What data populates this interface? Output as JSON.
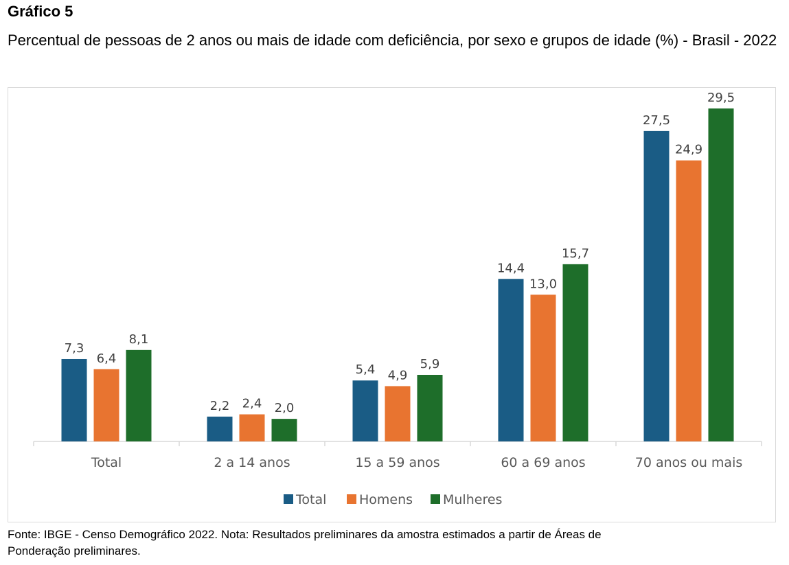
{
  "header": {
    "label": "Gráfico 5",
    "title": "Percentual de pessoas de 2 anos ou mais de idade com deficiência, por sexo e grupos de idade (%) - Brasil - 2022"
  },
  "footnote": {
    "line1": "Fonte: IBGE - Censo Demográfico 2022. Nota: Resultados preliminares da amostra estimados a partir de Áreas de",
    "line2": "Ponderação preliminares."
  },
  "colors": {
    "total": "#1a5c85",
    "homens": "#e87430",
    "mulheres": "#1e6e2a",
    "axis": "#d9d9d9"
  },
  "chart_data": {
    "type": "bar",
    "categories": [
      "Total",
      "2 a 14 anos",
      "15 a 59 anos",
      "60 a 69 anos",
      "70 anos ou mais"
    ],
    "series": [
      {
        "name": "Total",
        "values": [
          7.3,
          2.2,
          5.4,
          14.4,
          27.5
        ],
        "labels": [
          "7,3",
          "2,2",
          "5,4",
          "14,4",
          "27,5"
        ],
        "color": "#1a5c85"
      },
      {
        "name": "Homens",
        "values": [
          6.4,
          2.4,
          4.9,
          13.0,
          24.9
        ],
        "labels": [
          "6,4",
          "2,4",
          "4,9",
          "13,0",
          "24,9"
        ],
        "color": "#e87430"
      },
      {
        "name": "Mulheres",
        "values": [
          8.1,
          2.0,
          5.9,
          15.7,
          29.5
        ],
        "labels": [
          "8,1",
          "2,0",
          "5,9",
          "15,7",
          "29,5"
        ],
        "color": "#1e6e2a"
      }
    ],
    "ylim": [
      0,
      29.5
    ],
    "grid": false,
    "legend": "bottom"
  }
}
